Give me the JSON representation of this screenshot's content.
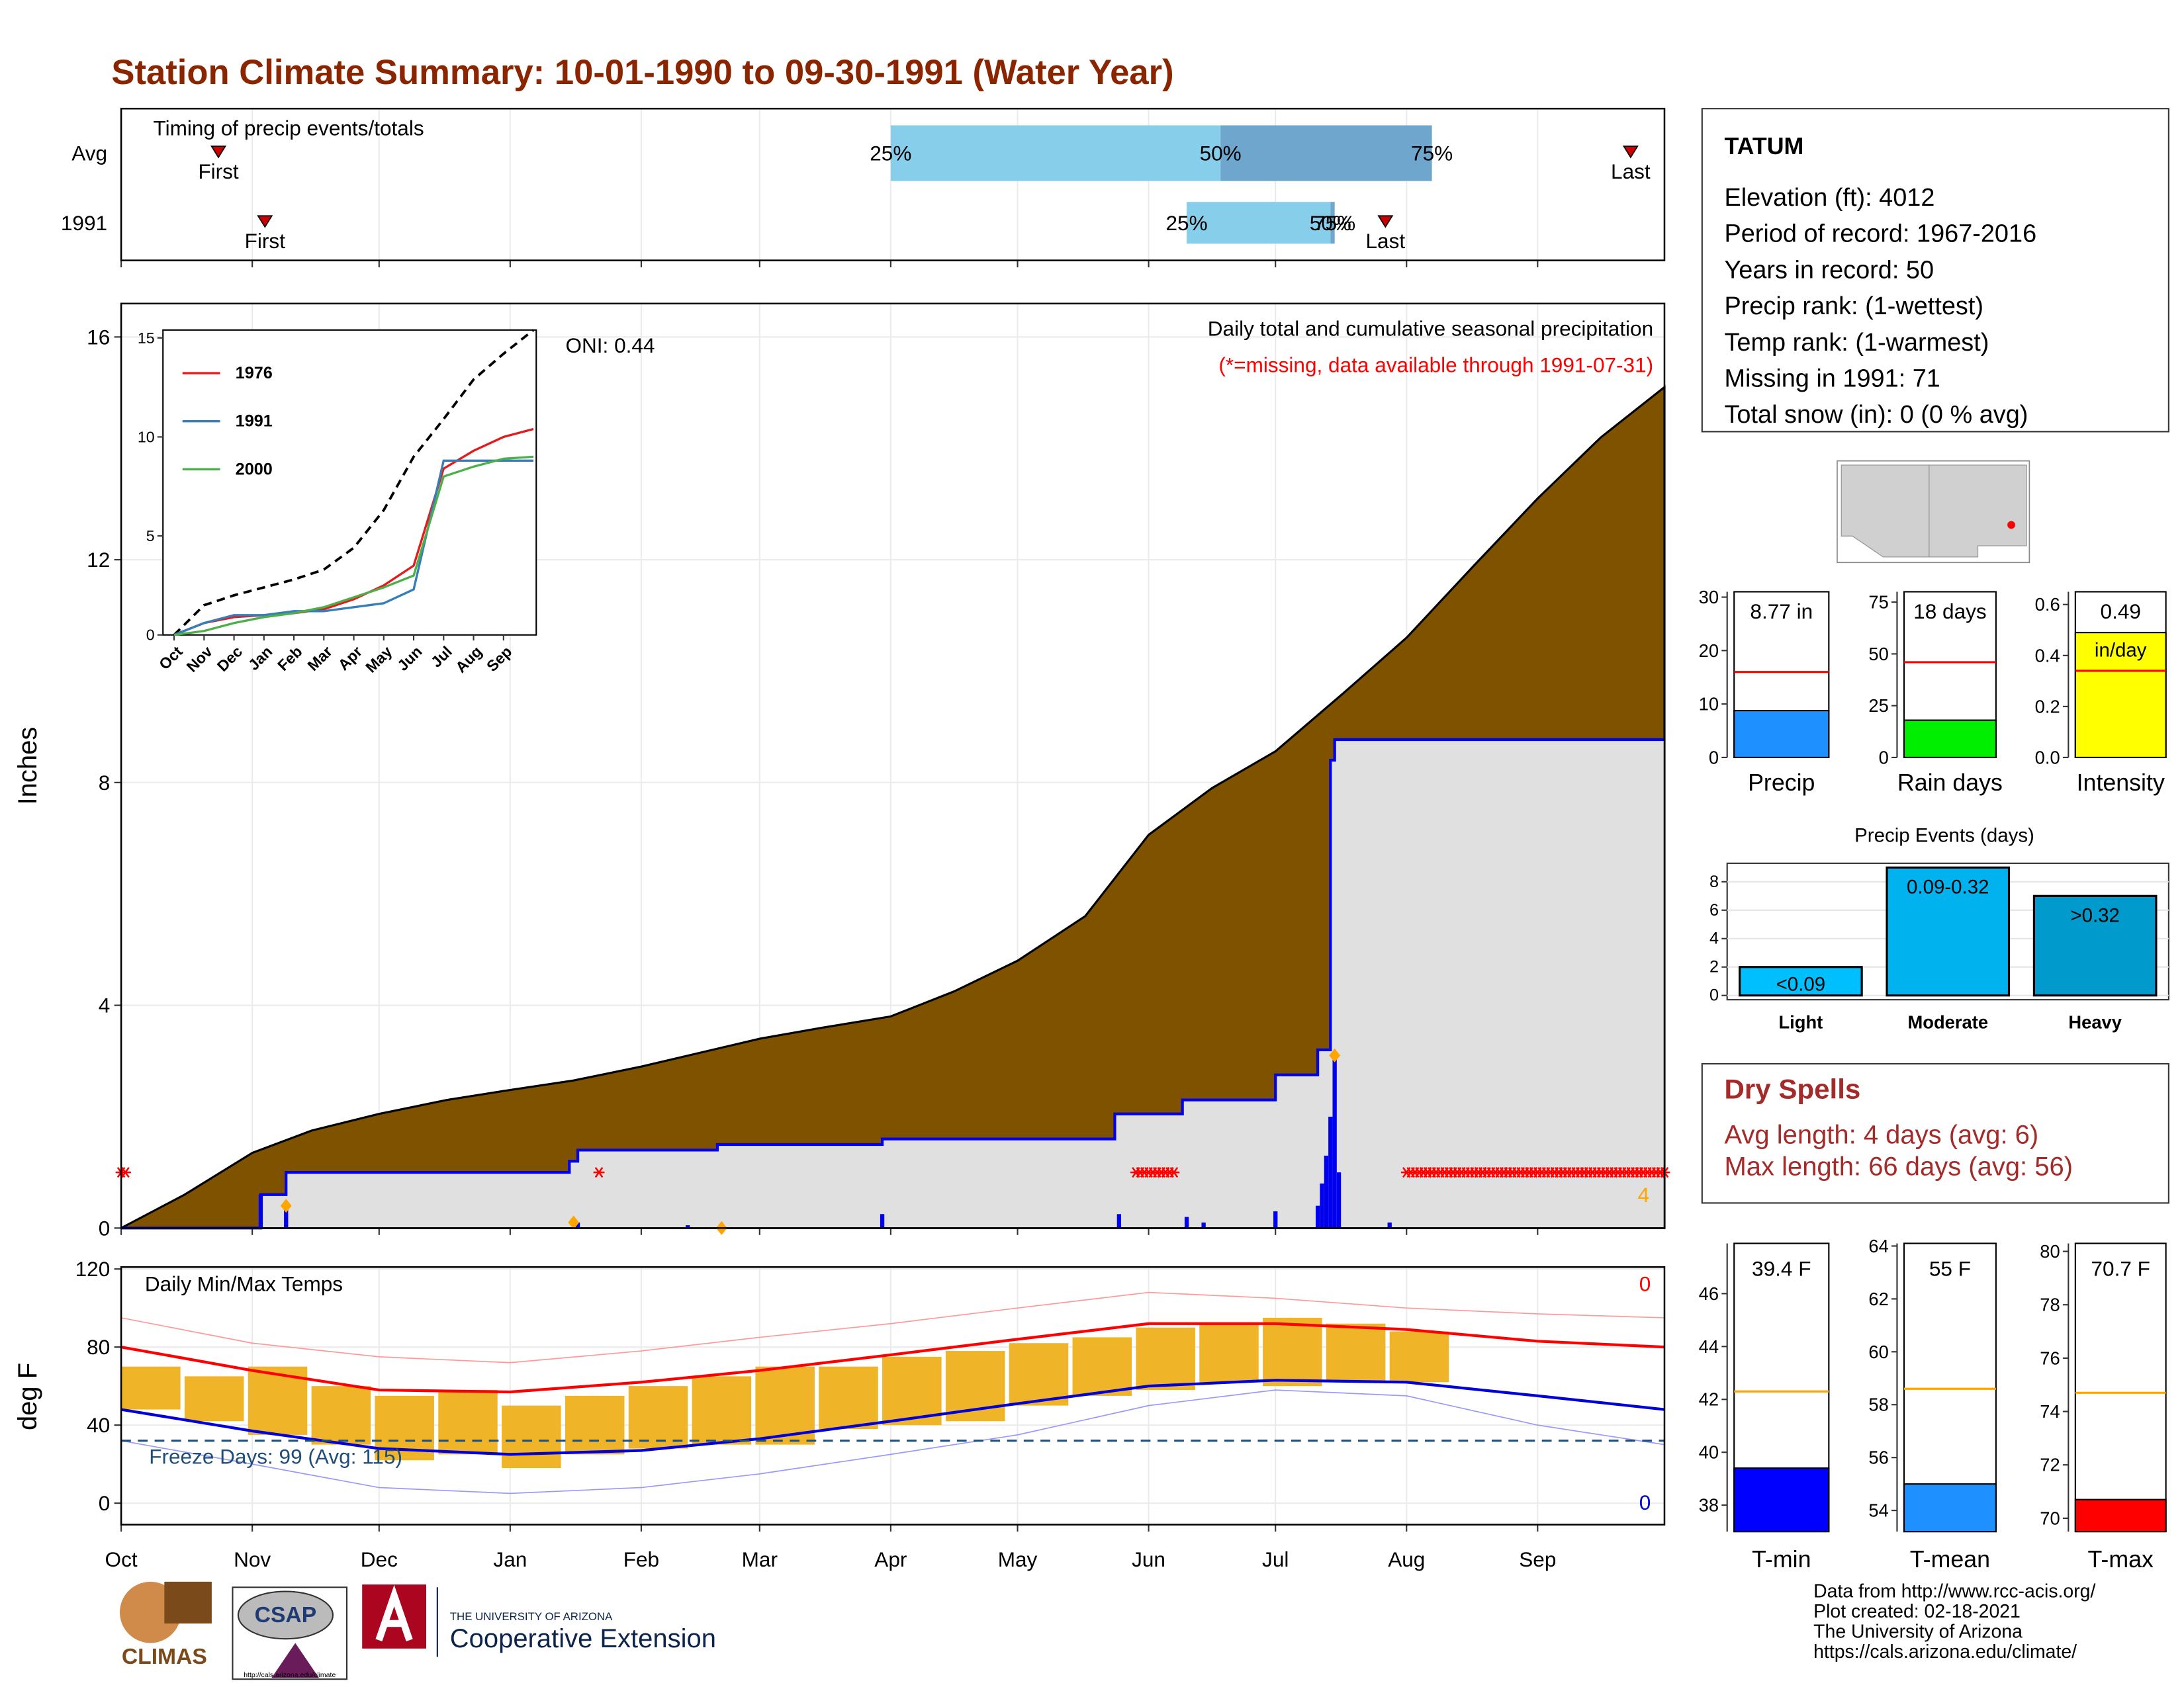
{
  "title": "Station Climate Summary: 10-01-1990 to 09-30-1991 (Water Year)",
  "x_axis": {
    "xlim": [
      0,
      365
    ],
    "ticks": [
      {
        "value": 0,
        "label": "Oct"
      },
      {
        "value": 31,
        "label": "Nov"
      },
      {
        "value": 61,
        "label": "Dec"
      },
      {
        "value": 92,
        "label": "Jan"
      },
      {
        "value": 123,
        "label": "Feb"
      },
      {
        "value": 151,
        "label": "Mar"
      },
      {
        "value": 182,
        "label": "Apr"
      },
      {
        "value": 212,
        "label": "May"
      },
      {
        "value": 243,
        "label": "Jun"
      },
      {
        "value": 273,
        "label": "Jul"
      },
      {
        "value": 304,
        "label": "Aug"
      },
      {
        "value": 335,
        "label": "Sep"
      }
    ]
  },
  "timing": {
    "title": "Timing of precip events/totals",
    "rows": [
      "Avg",
      "1991"
    ],
    "quartile_labels": [
      "25%",
      "50%",
      "75%"
    ],
    "quartiles": [
      [
        182,
        260,
        310
      ],
      [
        252,
        286,
        287
      ]
    ],
    "first": [
      23,
      34
    ],
    "last": [
      357,
      299
    ],
    "first_label": "First",
    "last_label": "Last"
  },
  "precip": {
    "title": "Daily total and cumulative seasonal precipitation",
    "note": "(*=missing, data available through 1991-07-31)",
    "oni": "ONI: 0.44",
    "ylabel": "Inches",
    "ylim": [
      0,
      16.6
    ],
    "yticks": [
      0,
      4,
      8,
      12,
      16
    ],
    "avg_cumulative": {
      "color": "#7f5200",
      "x": [
        0,
        15,
        31,
        45,
        61,
        77,
        92,
        107,
        123,
        137,
        151,
        166,
        182,
        197,
        212,
        228,
        243,
        258,
        273,
        289,
        304,
        320,
        335,
        350,
        365
      ],
      "values": [
        0,
        0.6,
        1.35,
        1.75,
        2.05,
        2.3,
        2.48,
        2.65,
        2.9,
        3.15,
        3.4,
        3.6,
        3.8,
        4.25,
        4.8,
        5.6,
        7.06,
        7.9,
        8.56,
        9.6,
        10.6,
        11.9,
        13.1,
        14.2,
        15.1
      ]
    },
    "cumulative_1991": {
      "color": "#0000ee",
      "x": [
        0,
        33,
        39,
        106,
        108,
        141,
        180,
        235,
        251,
        273,
        283,
        286,
        287,
        365
      ],
      "values": [
        0,
        0.6,
        1.0,
        1.2,
        1.4,
        1.5,
        1.6,
        2.05,
        2.3,
        2.75,
        3.2,
        8.4,
        8.77,
        8.77
      ]
    },
    "daily": {
      "color": "#0000ee",
      "x": [
        33,
        39,
        108,
        134,
        180,
        236,
        252,
        256,
        273,
        283,
        284,
        285,
        286,
        287,
        288,
        300
      ],
      "values": [
        0.6,
        0.4,
        0.1,
        0.05,
        0.25,
        0.25,
        0.2,
        0.1,
        0.3,
        0.4,
        0.8,
        1.3,
        2.0,
        3.1,
        1.0,
        0.1
      ]
    },
    "missing": [
      [
        0,
        1
      ],
      [
        113,
        113
      ],
      [
        240,
        249
      ],
      [
        304,
        365
      ]
    ],
    "extremes": {
      "color": "#ffa500",
      "x": [
        39,
        107,
        142,
        287
      ],
      "values": [
        0.4,
        0.1,
        0,
        3.1
      ]
    },
    "extreme_count": 4
  },
  "inset": {
    "xlim": [
      0,
      12
    ],
    "ylim": [
      0,
      15.4
    ],
    "yticks": [
      0,
      5,
      10,
      15
    ],
    "x": [
      0,
      1,
      2,
      3,
      4,
      5,
      6,
      7,
      8,
      9,
      10,
      11,
      12
    ],
    "avg": [
      0,
      1.5,
      2.0,
      2.4,
      2.8,
      3.3,
      4.4,
      6.3,
      9.0,
      10.9,
      12.9,
      14.2,
      15.4
    ],
    "series": [
      {
        "name": "1976",
        "color": "#e41a1c",
        "values": [
          0,
          0.6,
          0.9,
          1.0,
          1.1,
          1.3,
          1.8,
          2.5,
          3.5,
          8.4,
          9.3,
          10.0,
          10.4
        ]
      },
      {
        "name": "1991",
        "color": "#377eb8",
        "values": [
          0,
          0.6,
          1.0,
          1.0,
          1.2,
          1.2,
          1.4,
          1.6,
          2.3,
          8.8,
          8.8,
          8.8,
          8.8
        ]
      },
      {
        "name": "2000",
        "color": "#4daf4a",
        "values": [
          0,
          0.2,
          0.6,
          0.9,
          1.1,
          1.4,
          1.9,
          2.4,
          3.0,
          8.0,
          8.5,
          8.9,
          9.0
        ]
      }
    ]
  },
  "temps": {
    "title": "Daily Min/Max Temps",
    "ylabel": "deg F",
    "ylim": [
      -11,
      121
    ],
    "yticks": [
      0,
      40,
      80,
      120
    ],
    "freeze_line": 32,
    "freeze_label": "Freeze Days: 99 (Avg: 115)",
    "record_high_count": 0,
    "record_low_count": 0,
    "x": [
      0,
      31,
      61,
      92,
      123,
      151,
      182,
      212,
      243,
      273,
      304,
      335,
      365
    ],
    "avg_max": [
      80,
      68,
      58,
      57,
      62,
      68,
      76,
      84,
      92,
      92,
      89,
      83,
      80
    ],
    "avg_min": [
      48,
      37,
      28,
      25,
      27,
      33,
      42,
      51,
      60,
      63,
      62,
      55,
      48
    ],
    "extreme_max": [
      95,
      82,
      75,
      72,
      78,
      85,
      92,
      100,
      108,
      105,
      100,
      97,
      95
    ],
    "extreme_min": [
      32,
      20,
      8,
      5,
      8,
      15,
      25,
      35,
      50,
      58,
      55,
      40,
      30
    ],
    "bars": {
      "color": "#f0b429",
      "x": [
        0,
        15,
        30,
        45,
        60,
        75,
        90,
        105,
        120,
        135,
        150,
        165,
        180,
        195,
        210,
        225,
        240,
        255,
        270,
        285,
        300
      ],
      "low": [
        48,
        42,
        35,
        30,
        22,
        25,
        18,
        25,
        28,
        30,
        30,
        38,
        40,
        42,
        50,
        55,
        58,
        62,
        60,
        62,
        62
      ],
      "high": [
        70,
        65,
        70,
        60,
        55,
        58,
        50,
        55,
        60,
        65,
        70,
        70,
        75,
        78,
        82,
        85,
        90,
        92,
        95,
        92,
        88
      ]
    }
  },
  "station": {
    "name": "TATUM",
    "lines": [
      "Elevation (ft): 4012",
      "Period of record: 1967-2016",
      "Years in record: 50",
      "Precip rank:  (1-wettest)",
      "Temp rank:  (1-warmest)",
      "Missing in 1991: 71",
      "Total snow (in): 0 (0 % avg)"
    ]
  },
  "summary_bars": [
    {
      "label": "Precip",
      "ylim": [
        0,
        31
      ],
      "yticks": [
        0,
        10,
        20,
        30
      ],
      "value": 8.77,
      "value_label": "8.77 in",
      "avg": 16,
      "color": "#1e90ff",
      "avg_color": "#ff0000"
    },
    {
      "label": "Rain days",
      "ylim": [
        0,
        80
      ],
      "yticks": [
        0,
        25,
        50,
        75
      ],
      "value": 18,
      "value_label": "18 days",
      "avg": 46,
      "color": "#00ee00",
      "avg_color": "#ff0000"
    },
    {
      "label": "Intensity",
      "ylim": [
        0,
        0.65
      ],
      "yticks": [
        {
          "value": 0,
          "label": "0.0"
        },
        0.2,
        0.4,
        0.6
      ],
      "value": 0.49,
      "value_label": "0.49",
      "unit_label": "in/day",
      "avg": 0.34,
      "color": "#ffff00",
      "avg_color": "#ff0000"
    }
  ],
  "events": {
    "title": "Precip Events (days)",
    "categories": [
      "Light",
      "Moderate",
      "Heavy"
    ],
    "values": [
      2,
      9,
      7
    ],
    "value_labels": [
      "<0.09",
      "0.09-0.32",
      ">0.32"
    ],
    "colors": [
      "#00bfff",
      "#00b2ee",
      "#009acd"
    ],
    "ylim": [
      -0.3,
      9.3
    ],
    "yticks": [
      0,
      2,
      4,
      6,
      8
    ]
  },
  "dry_spells": {
    "title": "Dry Spells",
    "lines": [
      "Avg length: 4 days (avg: 6)",
      "Max length: 66 days (avg: 56)"
    ]
  },
  "temp_bars": [
    {
      "label": "T-min",
      "ylim": [
        37,
        47.9
      ],
      "yticks": [
        38,
        40,
        42,
        44,
        46
      ],
      "value": 39.4,
      "value_label": "39.4 F",
      "avg": 42.3,
      "color": "#0000ff"
    },
    {
      "label": "T-mean",
      "ylim": [
        53.2,
        64.1
      ],
      "yticks": [
        54,
        56,
        58,
        60,
        62,
        64
      ],
      "value": 55,
      "value_label": "55 F",
      "avg": 58.6,
      "color": "#1e90ff"
    },
    {
      "label": "T-max",
      "ylim": [
        69.5,
        80.3
      ],
      "yticks": [
        70,
        72,
        74,
        76,
        78,
        80
      ],
      "value": 70.7,
      "value_label": "70.7 F",
      "avg": 74.7,
      "color": "#ff0000"
    }
  ],
  "footer": [
    "Data from http://www.rcc-acis.org/",
    "Plot created: 02-18-2021",
    "The University of Arizona",
    "https://cals.arizona.edu/climate/"
  ],
  "logos": {
    "climas": "CLIMAS",
    "csap": "CSAP",
    "csap_url": "http://cals.arizona.edu/climate",
    "ua": "THE UNIVERSITY OF ARIZONA",
    "coop": "Cooperative Extension"
  }
}
